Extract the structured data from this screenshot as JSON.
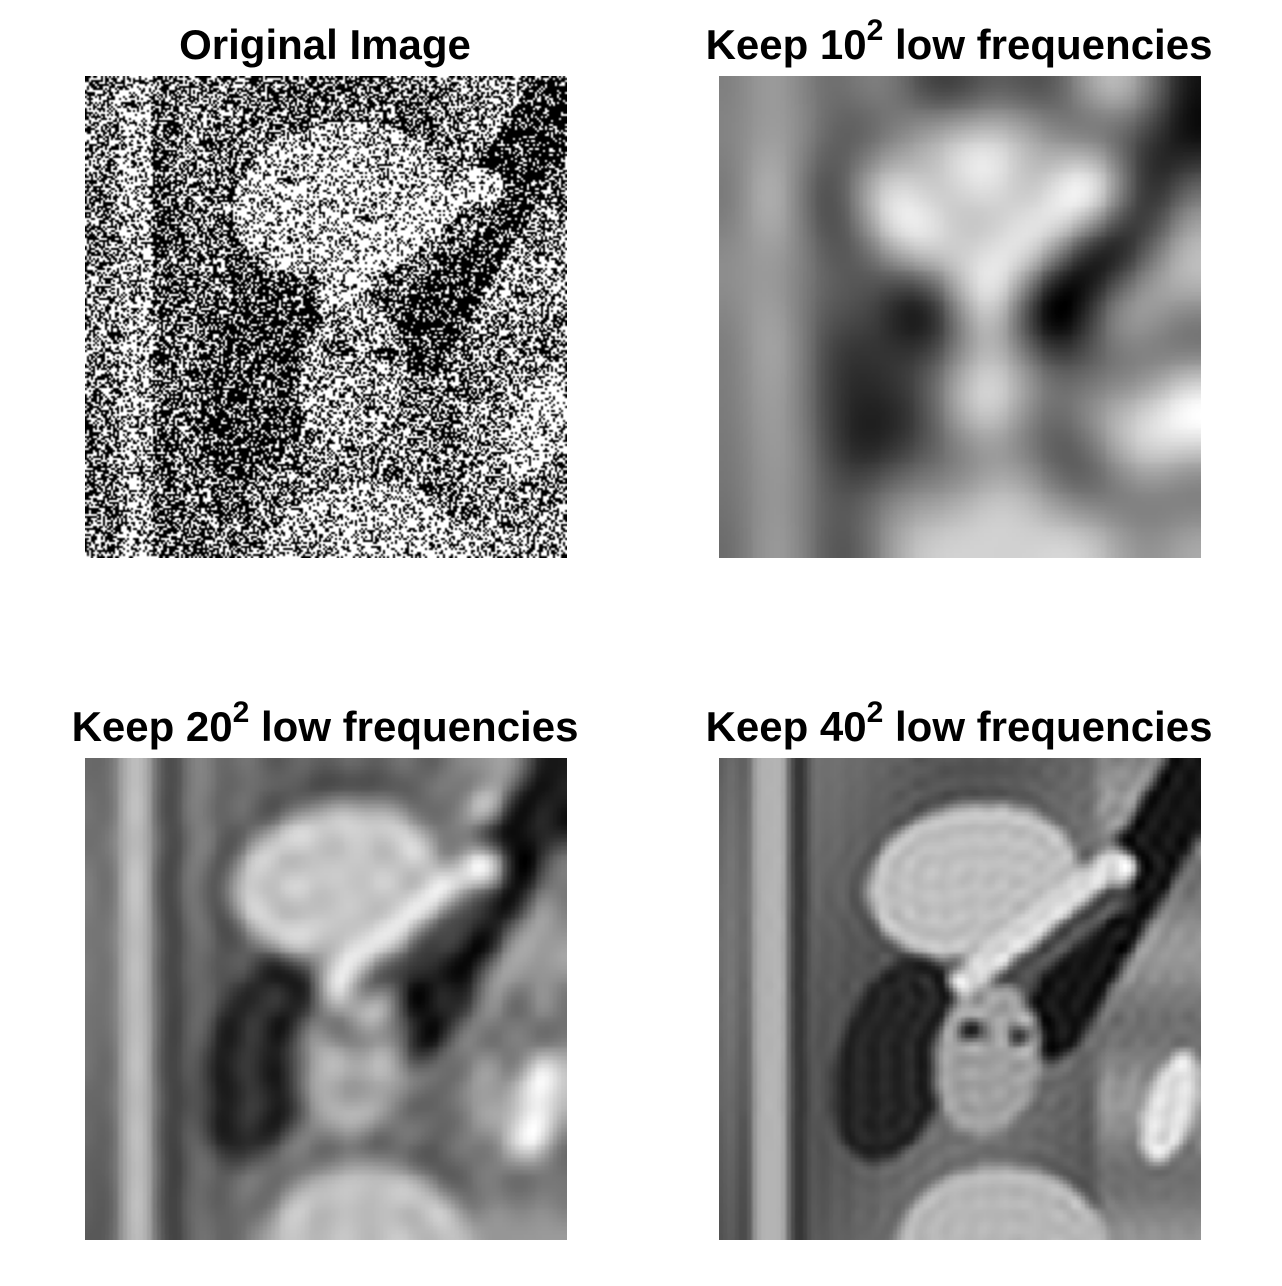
{
  "panels": [
    {
      "id": "orig",
      "title_main": "Original Image",
      "title_exponent": "",
      "title_suffix": "",
      "kept_frequencies": null,
      "noisy": true
    },
    {
      "id": "k10",
      "title_main": "Keep 10",
      "title_exponent": "2",
      "title_suffix": " low frequencies",
      "kept_frequencies": 10,
      "noisy": false
    },
    {
      "id": "k20",
      "title_main": "Keep 20",
      "title_exponent": "2",
      "title_suffix": " low frequencies",
      "kept_frequencies": 20,
      "noisy": false
    },
    {
      "id": "k40",
      "title_main": "Keep 40",
      "title_exponent": "2",
      "title_suffix": " low frequencies",
      "kept_frequencies": 40,
      "noisy": false
    }
  ],
  "colors": {
    "background": "#ffffff",
    "title_text": "#000000",
    "colormap": "grayscale"
  }
}
